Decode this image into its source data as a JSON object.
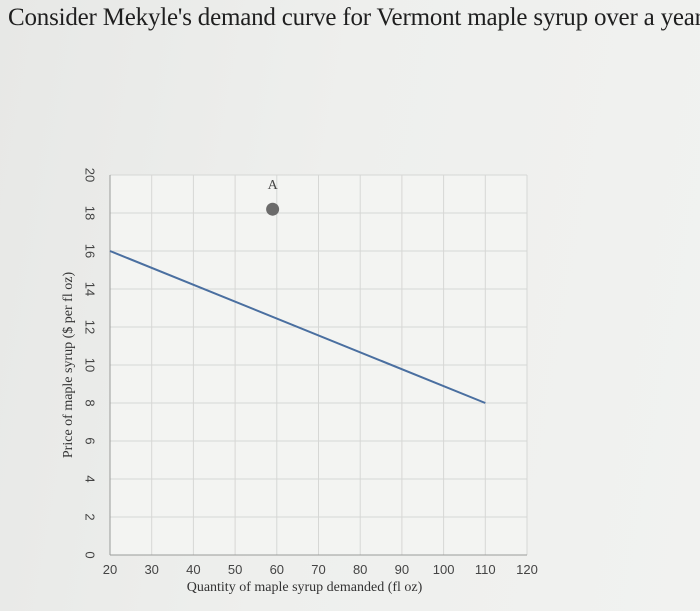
{
  "question": {
    "text": "Consider Mekyle's demand curve for Vermont maple syrup over a year:"
  },
  "chart_data": {
    "type": "line",
    "xlabel": "Quantity of maple syrup demanded (fl oz)",
    "ylabel": "Price of maple syrup ($ per fl oz)",
    "x_ticks": [
      20,
      30,
      40,
      50,
      60,
      70,
      80,
      90,
      100,
      110,
      120
    ],
    "y_ticks": [
      0,
      2,
      4,
      6,
      8,
      10,
      12,
      14,
      16,
      18,
      20
    ],
    "xlim": [
      20,
      120
    ],
    "ylim": [
      0,
      20
    ],
    "grid": true,
    "series": [
      {
        "x": [
          20,
          110
        ],
        "y": [
          16,
          8
        ],
        "color": "#4a6fa0"
      }
    ],
    "points": [
      {
        "label": "A",
        "x": 59,
        "y": 18.2,
        "color": "#6b6b6b"
      }
    ]
  }
}
